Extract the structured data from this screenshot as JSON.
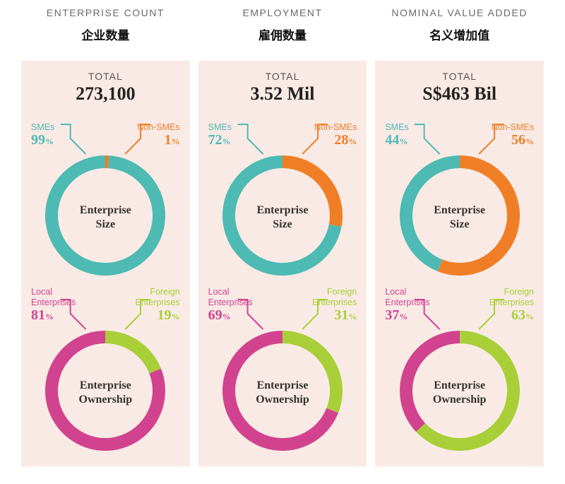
{
  "colors": {
    "panel_bg": "#f9eae5",
    "smes": "#4dbab3",
    "non_smes": "#f07e26",
    "local": "#d1438e",
    "foreign": "#a9cf38",
    "text_muted": "#6a6a68"
  },
  "totals_label": "TOTAL",
  "columns": [
    {
      "title": "ENTERPRISE COUNT",
      "subtitle": "企业数量",
      "total": "273,100",
      "size": {
        "label": "Enterprise\nSize",
        "smes_label": "SMEs",
        "non_smes_label": "Non-SMEs",
        "smes_pct": 99,
        "non_smes_pct": 1
      },
      "ownership": {
        "label": "Enterprise\nOwnership",
        "local_label": "Local\nEnterprises",
        "foreign_label": "Foreign\nEnterprises",
        "local_pct": 81,
        "foreign_pct": 19
      }
    },
    {
      "title": "EMPLOYMENT",
      "subtitle": "雇佣数量",
      "total": "3.52 Mil",
      "size": {
        "label": "Enterprise\nSize",
        "smes_label": "SMEs",
        "non_smes_label": "Non-SMEs",
        "smes_pct": 72,
        "non_smes_pct": 28
      },
      "ownership": {
        "label": "Enterprise\nOwnership",
        "local_label": "Local\nEnterprises",
        "foreign_label": "Foreign\nEnterprises",
        "local_pct": 69,
        "foreign_pct": 31
      }
    },
    {
      "title": "NOMINAL VALUE ADDED",
      "subtitle": "名义增加值",
      "total": "S$463 Bil",
      "size": {
        "label": "Enterprise\nSize",
        "smes_label": "SMEs",
        "non_smes_label": "Non-SMEs",
        "smes_pct": 44,
        "non_smes_pct": 56
      },
      "ownership": {
        "label": "Enterprise\nOwnership",
        "local_label": "Local\nEnterprises",
        "foreign_label": "Foreign\nEnterprises",
        "local_pct": 37,
        "foreign_pct": 63
      }
    }
  ],
  "donut_style": {
    "outer_radius": 85,
    "inner_radius": 67,
    "start_angle_deg": -90,
    "svg_size": 190
  },
  "pct_symbol": "%"
}
